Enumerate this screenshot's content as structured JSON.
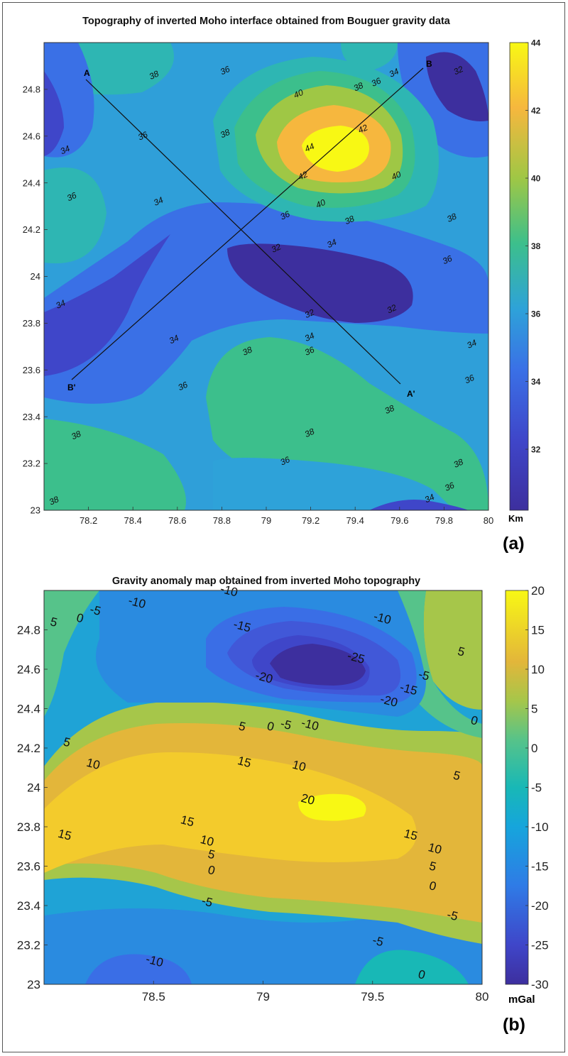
{
  "chart_data": [
    {
      "type": "heatmap",
      "subtype": "filled-contour",
      "title": "Topography of inverted Moho interface obtained from Bouguer gravity data",
      "panel_label": "(a)",
      "xlim": [
        78.0,
        80.0
      ],
      "ylim": [
        23.0,
        25.0
      ],
      "x_ticks": [
        "78.2",
        "78.4",
        "78.6",
        "78.8",
        "79",
        "79.2",
        "79.4",
        "79.6",
        "79.8",
        "80"
      ],
      "y_ticks": [
        "23",
        "23.2",
        "23.4",
        "23.6",
        "23.8",
        "24",
        "24.2",
        "24.4",
        "24.6",
        "24.8"
      ],
      "colorbar": {
        "unit": "Km",
        "range": [
          30.2,
          44
        ],
        "ticks": [
          "32",
          "34",
          "36",
          "38",
          "40",
          "42",
          "44"
        ]
      },
      "contour_levels": [
        32,
        34,
        36,
        38,
        40,
        42,
        44
      ],
      "profiles": [
        {
          "start_label": "A",
          "end_label": "A'",
          "start": [
            78.18,
            24.83
          ],
          "end": [
            79.62,
            23.53
          ]
        },
        {
          "start_label": "B",
          "end_label": "B'",
          "start": [
            79.72,
            24.88
          ],
          "end": [
            78.12,
            23.55
          ]
        }
      ],
      "contour_labels": [
        {
          "text": "38",
          "x": 78.5,
          "y": 24.85
        },
        {
          "text": "36",
          "x": 78.82,
          "y": 24.87
        },
        {
          "text": "40",
          "x": 79.15,
          "y": 24.77
        },
        {
          "text": "38",
          "x": 79.42,
          "y": 24.8
        },
        {
          "text": "36",
          "x": 79.5,
          "y": 24.82
        },
        {
          "text": "34",
          "x": 79.58,
          "y": 24.86
        },
        {
          "text": "32",
          "x": 79.87,
          "y": 24.87
        },
        {
          "text": "36",
          "x": 78.45,
          "y": 24.59
        },
        {
          "text": "38",
          "x": 78.82,
          "y": 24.6
        },
        {
          "text": "44",
          "x": 79.2,
          "y": 24.54
        },
        {
          "text": "42",
          "x": 79.44,
          "y": 24.62
        },
        {
          "text": "34",
          "x": 78.1,
          "y": 24.53
        },
        {
          "text": "42",
          "x": 79.17,
          "y": 24.42
        },
        {
          "text": "40",
          "x": 79.59,
          "y": 24.42
        },
        {
          "text": "36",
          "x": 78.13,
          "y": 24.33
        },
        {
          "text": "34",
          "x": 78.52,
          "y": 24.31
        },
        {
          "text": "40",
          "x": 79.25,
          "y": 24.3
        },
        {
          "text": "36",
          "x": 79.09,
          "y": 24.25
        },
        {
          "text": "38",
          "x": 79.38,
          "y": 24.23
        },
        {
          "text": "38",
          "x": 79.84,
          "y": 24.24
        },
        {
          "text": "34",
          "x": 79.3,
          "y": 24.13
        },
        {
          "text": "32",
          "x": 79.05,
          "y": 24.11
        },
        {
          "text": "36",
          "x": 79.82,
          "y": 24.06
        },
        {
          "text": "34",
          "x": 78.08,
          "y": 23.87
        },
        {
          "text": "32",
          "x": 79.2,
          "y": 23.83
        },
        {
          "text": "32",
          "x": 79.57,
          "y": 23.85
        },
        {
          "text": "34",
          "x": 79.2,
          "y": 23.73
        },
        {
          "text": "34",
          "x": 78.59,
          "y": 23.72
        },
        {
          "text": "38",
          "x": 78.92,
          "y": 23.67
        },
        {
          "text": "36",
          "x": 79.2,
          "y": 23.67
        },
        {
          "text": "34",
          "x": 79.93,
          "y": 23.7
        },
        {
          "text": "36",
          "x": 78.63,
          "y": 23.52
        },
        {
          "text": "36",
          "x": 79.92,
          "y": 23.55
        },
        {
          "text": "38",
          "x": 79.56,
          "y": 23.42
        },
        {
          "text": "38",
          "x": 78.15,
          "y": 23.31
        },
        {
          "text": "38",
          "x": 79.2,
          "y": 23.32
        },
        {
          "text": "36",
          "x": 79.09,
          "y": 23.2
        },
        {
          "text": "38",
          "x": 79.87,
          "y": 23.19
        },
        {
          "text": "36",
          "x": 79.83,
          "y": 23.09
        },
        {
          "text": "34",
          "x": 79.74,
          "y": 23.04
        },
        {
          "text": "38",
          "x": 78.05,
          "y": 23.03
        }
      ]
    },
    {
      "type": "heatmap",
      "subtype": "filled-contour",
      "title": "Gravity anomaly map obtained from inverted Moho topography",
      "panel_label": "(b)",
      "xlim": [
        78.0,
        80.0
      ],
      "ylim": [
        23.0,
        25.0
      ],
      "x_ticks": [
        "78.5",
        "79",
        "79.5",
        "80"
      ],
      "y_ticks": [
        "23",
        "23.2",
        "23.4",
        "23.6",
        "23.8",
        "24",
        "24.2",
        "24.4",
        "24.6",
        "24.8"
      ],
      "colorbar": {
        "unit": "mGal",
        "range": [
          -30,
          20
        ],
        "ticks": [
          "20",
          "15",
          "10",
          "5",
          "0",
          "-5",
          "-10",
          "-15",
          "-20",
          "-25",
          "-30"
        ]
      },
      "contour_levels": [
        -25,
        -20,
        -15,
        -10,
        -5,
        0,
        5,
        10,
        15,
        20
      ],
      "contour_labels": [
        {
          "text": "-10",
          "x": 78.42,
          "y": 24.92
        },
        {
          "text": "-10",
          "x": 78.84,
          "y": 24.98
        },
        {
          "text": "-5",
          "x": 78.23,
          "y": 24.88
        },
        {
          "text": "0",
          "x": 78.16,
          "y": 24.84
        },
        {
          "text": "5",
          "x": 78.04,
          "y": 24.82
        },
        {
          "text": "-15",
          "x": 78.9,
          "y": 24.8
        },
        {
          "text": "-10",
          "x": 79.54,
          "y": 24.84
        },
        {
          "text": "5",
          "x": 79.9,
          "y": 24.67
        },
        {
          "text": "-25",
          "x": 79.42,
          "y": 24.64
        },
        {
          "text": "-20",
          "x": 79.0,
          "y": 24.54
        },
        {
          "text": "-5",
          "x": 79.73,
          "y": 24.55
        },
        {
          "text": "-15",
          "x": 79.66,
          "y": 24.48
        },
        {
          "text": "-20",
          "x": 79.57,
          "y": 24.42
        },
        {
          "text": "0",
          "x": 79.96,
          "y": 24.32
        },
        {
          "text": "5",
          "x": 78.9,
          "y": 24.29
        },
        {
          "text": "0",
          "x": 79.03,
          "y": 24.29
        },
        {
          "text": "-5",
          "x": 79.1,
          "y": 24.3
        },
        {
          "text": "-10",
          "x": 79.21,
          "y": 24.3
        },
        {
          "text": "5",
          "x": 78.1,
          "y": 24.21
        },
        {
          "text": "10",
          "x": 78.22,
          "y": 24.1
        },
        {
          "text": "15",
          "x": 78.91,
          "y": 24.11
        },
        {
          "text": "10",
          "x": 79.16,
          "y": 24.09
        },
        {
          "text": "5",
          "x": 79.88,
          "y": 24.04
        },
        {
          "text": "20",
          "x": 79.2,
          "y": 23.92
        },
        {
          "text": "15",
          "x": 78.65,
          "y": 23.81
        },
        {
          "text": "15",
          "x": 78.09,
          "y": 23.74
        },
        {
          "text": "15",
          "x": 79.67,
          "y": 23.74
        },
        {
          "text": "10",
          "x": 78.74,
          "y": 23.71
        },
        {
          "text": "5",
          "x": 78.76,
          "y": 23.64
        },
        {
          "text": "10",
          "x": 79.78,
          "y": 23.67
        },
        {
          "text": "0",
          "x": 78.76,
          "y": 23.56
        },
        {
          "text": "5",
          "x": 79.77,
          "y": 23.58
        },
        {
          "text": "0",
          "x": 79.77,
          "y": 23.48
        },
        {
          "text": "-5",
          "x": 78.74,
          "y": 23.4
        },
        {
          "text": "-5",
          "x": 79.86,
          "y": 23.33
        },
        {
          "text": "-5",
          "x": 79.52,
          "y": 23.2
        },
        {
          "text": "-10",
          "x": 78.5,
          "y": 23.1
        },
        {
          "text": "0",
          "x": 79.72,
          "y": 23.03
        }
      ]
    }
  ]
}
